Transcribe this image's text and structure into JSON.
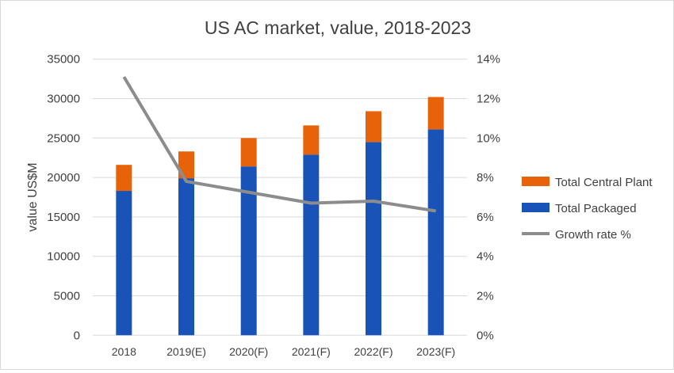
{
  "chart_data": {
    "type": "bar",
    "title": "US AC market, value, 2018-2023",
    "ylabel": "value US$M",
    "y2label": "",
    "categories": [
      "2018",
      "2019(E)",
      "2020(F)",
      "2021(F)",
      "2022(F)",
      "2023(F)"
    ],
    "ylim": [
      0,
      35000
    ],
    "yticks": [
      0,
      5000,
      10000,
      15000,
      20000,
      25000,
      30000,
      35000
    ],
    "y2lim": [
      0,
      14
    ],
    "y2ticks": [
      "0%",
      "2%",
      "4%",
      "6%",
      "8%",
      "10%",
      "12%",
      "14%"
    ],
    "stacked": true,
    "grid": true,
    "legend_position": "right",
    "series": [
      {
        "name": "Total Packaged",
        "type": "bar",
        "axis": "left",
        "color": "#1a53b8",
        "values": [
          18300,
          19900,
          21400,
          22900,
          24500,
          26100
        ]
      },
      {
        "name": "Total Central Plant",
        "type": "bar",
        "axis": "left",
        "color": "#e8620a",
        "values": [
          3300,
          3400,
          3600,
          3700,
          3900,
          4100
        ]
      },
      {
        "name": "Growth rate %",
        "type": "line",
        "axis": "right",
        "color": "#8c8c8c",
        "values": [
          13.1,
          7.8,
          7.25,
          6.7,
          6.8,
          6.3
        ]
      }
    ],
    "legend_order": [
      "Total Central Plant",
      "Total Packaged",
      "Growth rate %"
    ]
  }
}
